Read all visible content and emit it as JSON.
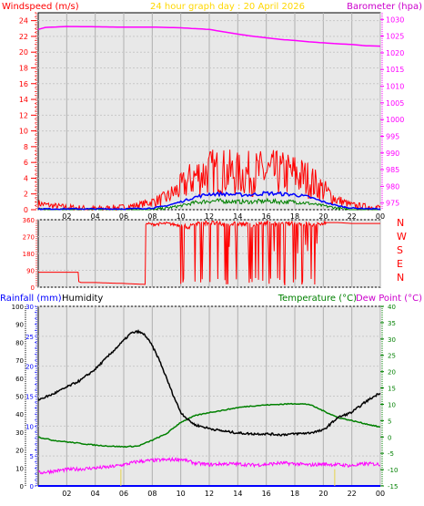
{
  "colors": {
    "wind_speed": "#ff0000",
    "wind_avg": "#0000ff",
    "wind_min": "#008000",
    "barometer": "#ff00ff",
    "direction": "#ff0000",
    "humidity": "#000000",
    "temperature": "#008000",
    "dew_point": "#ff00ff",
    "rainfall": "#0000ff",
    "title": "#ffd700"
  },
  "header": {
    "wind_label": "Windspeed (m/s)",
    "title": "24 hour graph day : 20 April 2026",
    "baro_label": "Barometer (hpa)"
  },
  "lower_header": {
    "rain_label": "Rainfall (mm)",
    "humidity_label": "Humidity",
    "temp_label": "Temperature (°C)",
    "dew_label": "Dew Point (°C)"
  },
  "chart_data": [
    {
      "type": "line",
      "title": "24 hour graph day : 20 April 2026",
      "y_left_label": "Windspeed (m/s)",
      "y_right_label": "Barometer (hpa)",
      "x_range": [
        0,
        24
      ],
      "x_ticks": [
        "02",
        "04",
        "06",
        "08",
        "10",
        "12",
        "14",
        "16",
        "18",
        "20",
        "22",
        "00"
      ],
      "y_left_range": [
        0,
        25
      ],
      "y_left_ticks": [
        "0",
        "2",
        "4",
        "6",
        "8",
        "10",
        "12",
        "14",
        "16",
        "18",
        "20",
        "22",
        "24"
      ],
      "y_right_range": [
        973,
        1032
      ],
      "y_right_ticks": [
        "975",
        "980",
        "985",
        "990",
        "995",
        "1000",
        "1005",
        "1010",
        "1015",
        "1020",
        "1025",
        "1030"
      ],
      "series": [
        {
          "name": "Barometer",
          "axis": "right",
          "x": [
            0,
            0.5,
            2,
            4,
            6,
            8,
            10,
            12,
            13,
            14,
            15,
            16,
            17,
            18,
            19,
            20,
            21,
            22,
            23,
            24
          ],
          "values": [
            1027.0,
            1027.6,
            1027.9,
            1027.8,
            1027.7,
            1027.7,
            1027.5,
            1027.0,
            1026.3,
            1025.6,
            1025.0,
            1024.5,
            1024.0,
            1023.7,
            1023.3,
            1023.0,
            1022.7,
            1022.5,
            1022.1,
            1022.0
          ]
        },
        {
          "name": "Wind Gust",
          "axis": "left",
          "noisy": true,
          "x": [
            0,
            1,
            2,
            3,
            4,
            5,
            6,
            7,
            8,
            9,
            10,
            11,
            12,
            13,
            14,
            15,
            16,
            17,
            18,
            19,
            20,
            21,
            22,
            23,
            24
          ],
          "values": [
            0.8,
            0.5,
            0.3,
            0.2,
            0.1,
            0.2,
            0.3,
            0.6,
            1.0,
            1.5,
            2.8,
            4.2,
            4.8,
            4.8,
            4.5,
            4.6,
            4.7,
            4.6,
            4.5,
            3.8,
            2.5,
            1.2,
            0.6,
            0.4,
            0.3
          ]
        },
        {
          "name": "Wind Average",
          "axis": "left",
          "noisy": true,
          "x": [
            0,
            2,
            4,
            6,
            8,
            9,
            10,
            11,
            12,
            13,
            14,
            15,
            16,
            17,
            18,
            19,
            20,
            21,
            22,
            24
          ],
          "values": [
            0.1,
            0.1,
            0.1,
            0.1,
            0.2,
            0.5,
            1.0,
            1.6,
            2.0,
            2.0,
            1.9,
            1.9,
            2.1,
            2.0,
            1.9,
            1.6,
            1.0,
            0.5,
            0.2,
            0.1
          ]
        },
        {
          "name": "Wind Minimum",
          "axis": "left",
          "noisy": true,
          "x": [
            0,
            2,
            4,
            6,
            8,
            9,
            10,
            11,
            12,
            13,
            14,
            15,
            16,
            17,
            18,
            19,
            20,
            21,
            22,
            24
          ],
          "values": [
            0,
            0,
            0,
            0,
            0,
            0.2,
            0.5,
            0.9,
            1.1,
            1.1,
            1.0,
            1.0,
            1.1,
            1.0,
            1.0,
            0.8,
            0.5,
            0.2,
            0,
            0
          ]
        }
      ]
    },
    {
      "type": "line",
      "y_right_ticks": [
        "N",
        "W",
        "S",
        "E",
        "N"
      ],
      "y_range": [
        0,
        360
      ],
      "y_ticks": [
        "0",
        "90",
        "180",
        "270",
        "360"
      ],
      "x_range": [
        0,
        24
      ],
      "series": [
        {
          "name": "Wind Direction",
          "x": [
            0,
            2.8,
            2.82,
            2.84,
            3,
            4,
            5,
            6,
            6.5,
            7.5,
            7.52,
            7.6,
            8,
            9,
            10,
            10.5,
            11,
            12,
            13,
            14,
            15,
            16,
            17,
            18,
            19,
            19.5,
            20,
            21,
            22,
            24
          ],
          "values": [
            80,
            80,
            360,
            30,
            25,
            25,
            22,
            20,
            18,
            15,
            330,
            340,
            335,
            340,
            330,
            320,
            340,
            345,
            335,
            340,
            330,
            345,
            335,
            340,
            335,
            330,
            345,
            345,
            340,
            340
          ]
        }
      ]
    },
    {
      "type": "line",
      "x_range": [
        0,
        24
      ],
      "x_ticks": [
        "02",
        "04",
        "06",
        "08",
        "10",
        "12",
        "14",
        "16",
        "18",
        "20",
        "22",
        "00"
      ],
      "y_left_range": [
        0,
        100
      ],
      "y_left_ticks": [
        "0",
        "10",
        "20",
        "30",
        "40",
        "50",
        "60",
        "70",
        "80",
        "90",
        "100"
      ],
      "y_rain_range": [
        0,
        30
      ],
      "y_rain_ticks": [
        "0",
        "5",
        "10",
        "15",
        "20",
        "25",
        "30"
      ],
      "y_right_range": [
        -15,
        40
      ],
      "y_right_ticks": [
        "-15",
        "-10",
        "-5",
        "0",
        "5",
        "10",
        "15",
        "20",
        "25",
        "30",
        "35",
        "40"
      ],
      "series": [
        {
          "name": "Humidity",
          "axis": "left",
          "x": [
            0,
            1,
            2,
            3,
            4,
            5,
            6,
            6.5,
            7,
            7.5,
            8,
            8.5,
            9,
            9.5,
            10,
            10.5,
            11,
            12,
            13,
            14,
            15,
            16,
            17,
            18,
            19,
            20,
            21,
            22,
            23,
            24
          ],
          "values": [
            48,
            51,
            55,
            59,
            65,
            73,
            81,
            85,
            86,
            84,
            78,
            70,
            60,
            50,
            41,
            37,
            34,
            32,
            30.5,
            29.5,
            29,
            29,
            28.5,
            29,
            29.5,
            31,
            38,
            41,
            47,
            52
          ]
        },
        {
          "name": "Temperature",
          "axis": "right",
          "x": [
            0,
            1,
            2,
            3,
            4,
            5,
            6,
            7,
            8,
            9,
            10,
            11,
            12,
            13,
            14,
            15,
            16,
            17,
            18,
            19,
            20,
            21,
            22,
            23,
            24
          ],
          "values": [
            0,
            -1,
            -1.5,
            -2,
            -2.5,
            -2.8,
            -3,
            -2.8,
            -1,
            1,
            4.5,
            6.5,
            7.5,
            8.2,
            9,
            9.5,
            9.8,
            10,
            10.2,
            10,
            8,
            6,
            5,
            4,
            3
          ]
        },
        {
          "name": "Dew Point",
          "axis": "right",
          "x": [
            0,
            1,
            2,
            3,
            4,
            5,
            6,
            7,
            8,
            9,
            10,
            11,
            12,
            13,
            14,
            15,
            16,
            17,
            18,
            19,
            20,
            21,
            22,
            23,
            24
          ],
          "values": [
            -11,
            -10.5,
            -10,
            -9.8,
            -9.5,
            -9.2,
            -8.5,
            -7.5,
            -7.2,
            -7.0,
            -6.8,
            -8.0,
            -8.5,
            -8.2,
            -8.3,
            -8.6,
            -8.4,
            -8.0,
            -8.2,
            -8.6,
            -8.3,
            -8.5,
            -8.8,
            -8.2,
            -8.4
          ]
        },
        {
          "name": "Rainfall",
          "axis": "rain",
          "x": [
            0,
            24
          ],
          "values": [
            0,
            0
          ]
        },
        {
          "name": "Rain markers",
          "axis": "rain",
          "x": [
            5.8,
            20.8
          ],
          "values": [
            2.8,
            2.8
          ]
        }
      ]
    }
  ]
}
